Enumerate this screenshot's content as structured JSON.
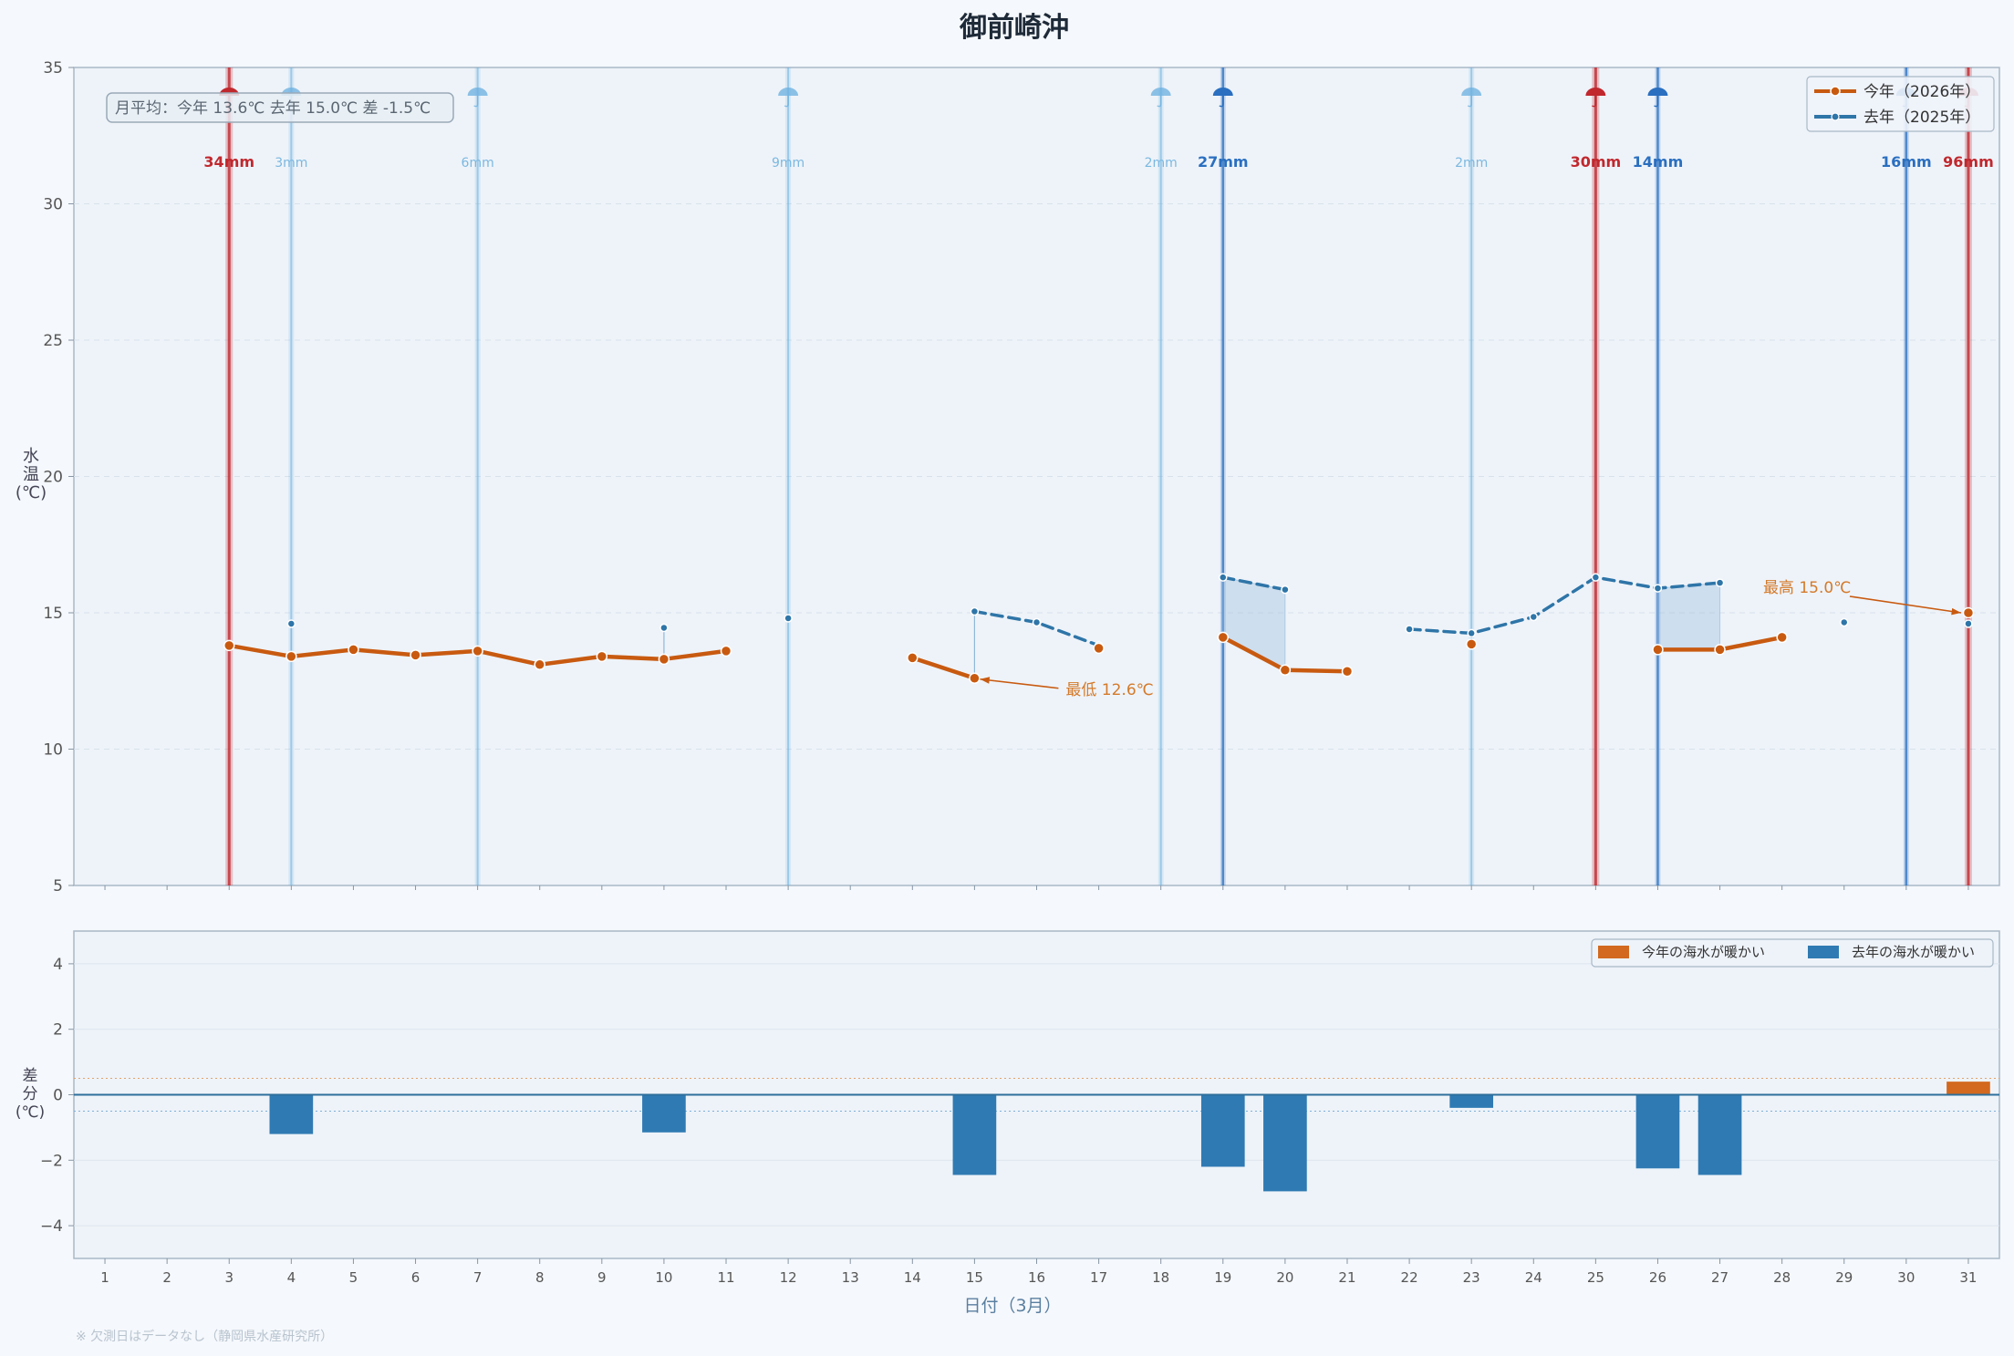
{
  "chart_data": [
    {
      "type": "line",
      "title": "御前崎沖",
      "ylabel": "水温(℃)",
      "xlim": [
        0.5,
        31.5
      ],
      "ylim": [
        5,
        35
      ],
      "yticks": [
        5,
        10,
        15,
        20,
        25,
        30,
        35
      ],
      "grid": "horizontal dashed",
      "legend_position": "top-right",
      "series": [
        {
          "name": "今年（2026年）",
          "color": "#c85a10",
          "style": "solid",
          "points": [
            [
              3,
              13.8
            ],
            [
              4,
              13.4
            ],
            [
              5,
              13.65
            ],
            [
              6,
              13.45
            ],
            [
              7,
              13.6
            ],
            [
              8,
              13.1
            ],
            [
              9,
              13.4
            ],
            [
              10,
              13.3
            ],
            [
              11,
              13.6
            ],
            [
              14,
              13.35
            ],
            [
              15,
              12.6
            ],
            [
              17,
              13.7
            ],
            [
              19,
              14.1
            ],
            [
              20,
              12.9
            ],
            [
              21,
              12.85
            ],
            [
              23,
              13.85
            ],
            [
              26,
              13.65
            ],
            [
              27,
              13.65
            ],
            [
              28,
              14.1
            ],
            [
              31,
              15.0
            ]
          ],
          "segments": [
            [
              3,
              11
            ],
            [
              14,
              15
            ],
            [
              19,
              21
            ],
            [
              26,
              28
            ]
          ]
        },
        {
          "name": "去年（2025年）",
          "color": "#2e75a8",
          "style": "dashed",
          "points": [
            [
              4,
              14.6
            ],
            [
              10,
              14.45
            ],
            [
              12,
              14.8
            ],
            [
              15,
              15.05
            ],
            [
              16,
              14.65
            ],
            [
              17,
              13.8
            ],
            [
              19,
              16.3
            ],
            [
              20,
              15.85
            ],
            [
              22,
              14.4
            ],
            [
              23,
              14.25
            ],
            [
              24,
              14.85
            ],
            [
              25,
              16.3
            ],
            [
              26,
              15.9
            ],
            [
              27,
              16.1
            ],
            [
              29,
              14.65
            ],
            [
              31,
              14.6
            ]
          ],
          "segments": [
            [
              15,
              17
            ],
            [
              19,
              20
            ],
            [
              22,
              27
            ]
          ]
        }
      ],
      "rain_markers": [
        {
          "day": 3,
          "label": "34mm",
          "year": "今年"
        },
        {
          "day": 4,
          "label": "3mm",
          "year": "去年"
        },
        {
          "day": 7,
          "label": "6mm",
          "year": "去年"
        },
        {
          "day": 12,
          "label": "9mm",
          "year": "去年"
        },
        {
          "day": 18,
          "label": "2mm",
          "year": "去年"
        },
        {
          "day": 19,
          "label": "27mm",
          "year": "去年"
        },
        {
          "day": 23,
          "label": "2mm",
          "year": "去年"
        },
        {
          "day": 25,
          "label": "30mm",
          "year": "今年"
        },
        {
          "day": 26,
          "label": "14mm",
          "year": "去年"
        },
        {
          "day": 30,
          "label": "16mm",
          "year": "去年"
        },
        {
          "day": 31,
          "label": "96mm",
          "year": "今年"
        }
      ],
      "annotations": [
        {
          "text": "最低 12.6℃",
          "day": 15,
          "value": 12.6
        },
        {
          "text": "最高 15.0℃",
          "day": 31,
          "value": 15.0
        }
      ],
      "summary_box": "月平均：今年 13.6℃  去年 15.0℃  差 -1.5℃",
      "colors": {
        "rain_this_year": "#c0282e",
        "rain_last_heavy": "#2a6fc0",
        "rain_last_light": "#6ab0e0"
      }
    },
    {
      "type": "bar",
      "ylabel": "差分(℃)",
      "xlabel": "日付（3月）",
      "ylim": [
        -5,
        5
      ],
      "yticks": [
        -4,
        -2,
        0,
        2,
        4
      ],
      "categories": [
        1,
        2,
        3,
        4,
        5,
        6,
        7,
        8,
        9,
        10,
        11,
        12,
        13,
        14,
        15,
        16,
        17,
        18,
        19,
        20,
        21,
        22,
        23,
        24,
        25,
        26,
        27,
        28,
        29,
        30,
        31
      ],
      "bars": [
        {
          "day": 4,
          "value": -1.2
        },
        {
          "day": 10,
          "value": -1.15
        },
        {
          "day": 15,
          "value": -2.45
        },
        {
          "day": 19,
          "value": -2.2
        },
        {
          "day": 20,
          "value": -2.95
        },
        {
          "day": 23,
          "value": -0.4
        },
        {
          "day": 26,
          "value": -2.25
        },
        {
          "day": 27,
          "value": -2.45
        },
        {
          "day": 31,
          "value": 0.4
        }
      ],
      "legend_position": "top-right",
      "series": [
        {
          "name": "今年の海水が暖かい",
          "color": "#d2691e"
        },
        {
          "name": "去年の海水が暖かい",
          "color": "#2f7ab3"
        }
      ]
    }
  ],
  "footnote": "※ 欠測日はデータなし（静岡県水産研究所）"
}
